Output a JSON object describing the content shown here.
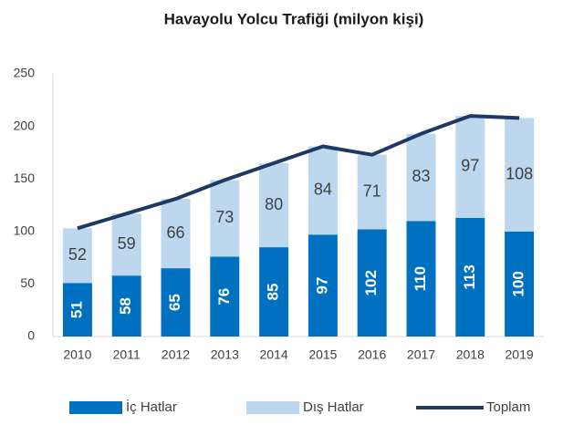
{
  "chart_data": {
    "type": "bar",
    "stacked": true,
    "title": "Havayolu Yolcu Trafiği (milyon kişi)",
    "categories": [
      "2010",
      "2011",
      "2012",
      "2013",
      "2014",
      "2015",
      "2016",
      "2017",
      "2018",
      "2019"
    ],
    "series": [
      {
        "name": "İç Hatlar",
        "color": "#0070c0",
        "values": [
          51,
          58,
          65,
          76,
          85,
          97,
          102,
          110,
          113,
          100
        ]
      },
      {
        "name": "Dış Hatlar",
        "color": "#bdd7ee",
        "values": [
          52,
          59,
          66,
          73,
          80,
          84,
          71,
          83,
          97,
          108
        ]
      },
      {
        "name": "Toplam",
        "type": "line",
        "color": "#1f3864",
        "values": [
          103,
          117,
          131,
          149,
          165,
          181,
          173,
          193,
          210,
          208
        ]
      }
    ],
    "ylim": [
      0,
      250
    ],
    "yticks": [
      0,
      50,
      100,
      150,
      200,
      250
    ],
    "grid": false,
    "legend": "bottom"
  }
}
